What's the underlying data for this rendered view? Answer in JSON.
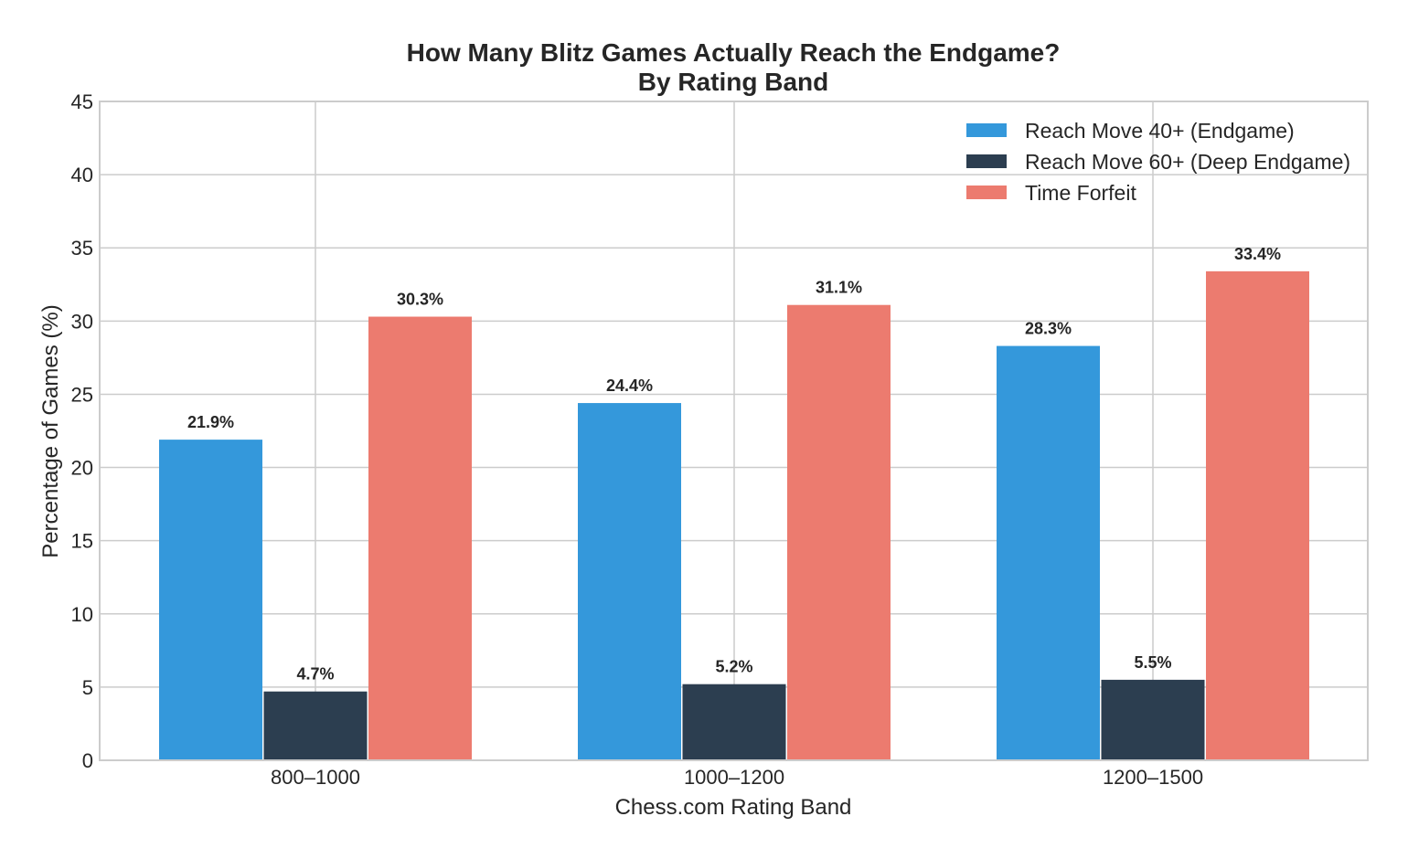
{
  "chart_data": {
    "type": "bar",
    "title": "How Many Blitz Games Actually Reach the Endgame?",
    "subtitle": "By Rating Band",
    "xlabel": "Chess.com Rating Band",
    "ylabel": "Percentage of Games (%)",
    "categories": [
      "800–1000",
      "1000–1200",
      "1200–1500"
    ],
    "ylim": [
      0,
      45
    ],
    "yticks": [
      0,
      5,
      10,
      15,
      20,
      25,
      30,
      35,
      40,
      45
    ],
    "grid": true,
    "legend_position": "top-right",
    "series": [
      {
        "name": "Reach Move 40+ (Endgame)",
        "color": "#3498db",
        "values": [
          21.9,
          24.4,
          28.3
        ],
        "labels": [
          "21.9%",
          "24.4%",
          "28.3%"
        ]
      },
      {
        "name": "Reach Move 60+ (Deep Endgame)",
        "color": "#2c3e50",
        "values": [
          4.7,
          5.2,
          5.5
        ],
        "labels": [
          "4.7%",
          "5.2%",
          "5.5%"
        ]
      },
      {
        "name": "Time Forfeit",
        "color": "#ec7b6f",
        "values": [
          30.3,
          31.1,
          33.4
        ],
        "labels": [
          "30.3%",
          "31.1%",
          "33.4%"
        ]
      }
    ]
  }
}
